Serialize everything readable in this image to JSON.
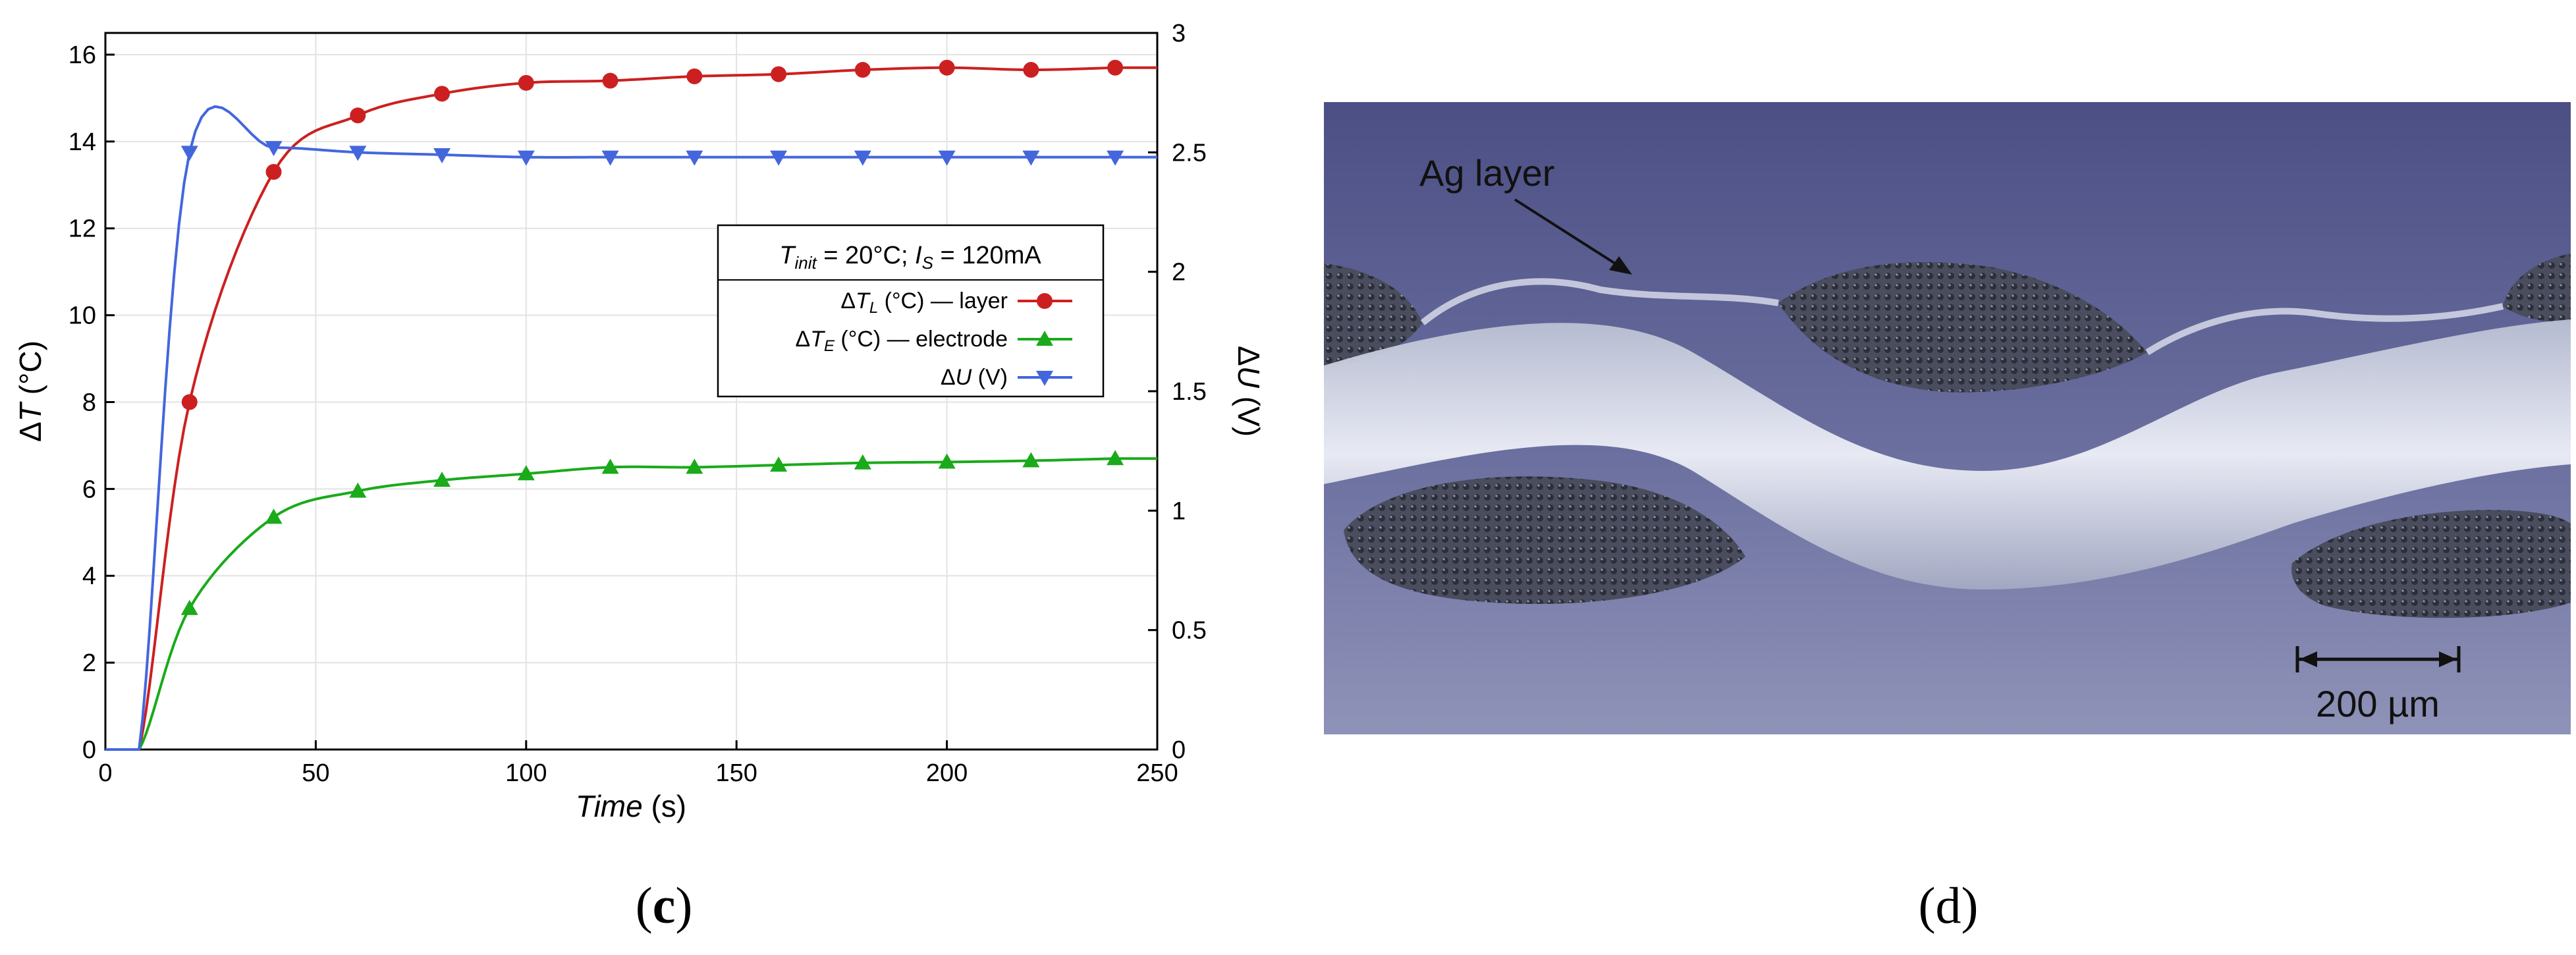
{
  "chart_data": {
    "type": "line",
    "xlabel": "Time (s)",
    "xlabel_main": "Time",
    "xlabel_unit": " (s)",
    "ylabel": "ΔT (°C)",
    "ylabel_prefix": "Δ",
    "ylabel_var": "T",
    "ylabel_unit": " (°C)",
    "y2label": "ΔU (V)",
    "y2label_prefix": "Δ",
    "y2label_var": "U",
    "y2label_unit": " (V)",
    "xlim": [
      0,
      250
    ],
    "ylim": [
      0,
      16.5
    ],
    "y2lim": [
      0,
      3
    ],
    "xticks": [
      0,
      50,
      100,
      150,
      200,
      250
    ],
    "yticks": [
      0,
      2,
      4,
      6,
      8,
      10,
      12,
      14,
      16
    ],
    "y2ticks": [
      0,
      0.5,
      1,
      1.5,
      2,
      2.5,
      3
    ],
    "y2ticklabels": [
      "0",
      "0.5",
      "1",
      "1.5",
      "2",
      "2.5",
      "3"
    ],
    "grid": true,
    "legend": {
      "title": "T_init = 20°C; I_S = 120mA",
      "title_t": "T",
      "title_init": "init",
      "title_mid": " = 20°C; ",
      "title_i": "I",
      "title_s": "S",
      "title_end": " = 120mA",
      "placement": "center-right"
    },
    "series": [
      {
        "name": "ΔT_L (°C) — layer",
        "name_delta": "Δ",
        "name_var": "T",
        "name_sub": "L",
        "name_rest": " (°C) — layer",
        "axis": "left",
        "color": "#cc2020",
        "marker": "circle",
        "x": [
          0,
          8,
          20,
          40,
          60,
          80,
          100,
          120,
          140,
          160,
          180,
          200,
          220,
          240
        ],
        "values": [
          0,
          0,
          8.0,
          13.3,
          14.6,
          15.1,
          15.35,
          15.4,
          15.5,
          15.55,
          15.65,
          15.7,
          15.65,
          15.7
        ]
      },
      {
        "name": "ΔT_E (°C) — electrode",
        "name_delta": "Δ",
        "name_var": "T",
        "name_sub": "E",
        "name_rest": " (°C) — electrode",
        "axis": "left",
        "color": "#1aaa1a",
        "marker": "triangle-up",
        "x": [
          0,
          8,
          20,
          40,
          60,
          80,
          100,
          120,
          140,
          160,
          180,
          200,
          220,
          240
        ],
        "values": [
          0,
          0,
          3.25,
          5.35,
          5.95,
          6.2,
          6.35,
          6.5,
          6.5,
          6.55,
          6.6,
          6.62,
          6.65,
          6.7
        ]
      },
      {
        "name": "ΔU (V)",
        "name_delta": "Δ",
        "name_var": "U",
        "name_sub": "",
        "name_rest": " (V)",
        "axis": "right",
        "color": "#4466dd",
        "marker": "triangle-down",
        "x": [
          0,
          8,
          20,
          40,
          60,
          80,
          100,
          120,
          140,
          160,
          180,
          200,
          220,
          240
        ],
        "values": [
          0,
          0,
          2.5,
          2.52,
          2.5,
          2.49,
          2.48,
          2.48,
          2.48,
          2.48,
          2.48,
          2.48,
          2.48,
          2.48
        ]
      }
    ]
  },
  "micrograph": {
    "annotation_label": "Ag layer",
    "scale_bar_label": "200 µm",
    "colors": {
      "background": "#5a5e8c",
      "fiber_bundle": "#4a4d5e",
      "silver_layer": "#dfe3f0"
    }
  },
  "captions": {
    "left_open": "(",
    "left_letter": "c",
    "left_close": ")",
    "right": "(d)"
  }
}
